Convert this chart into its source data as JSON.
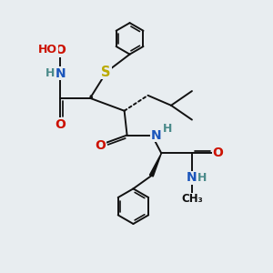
{
  "background_color": "#e8edf0",
  "bond_color": "#111111",
  "bond_width": 1.4,
  "atom_colors": {
    "C": "#111111",
    "H": "#4a8a8a",
    "N": "#1a55bb",
    "O": "#cc1100",
    "S": "#bbaa00"
  }
}
